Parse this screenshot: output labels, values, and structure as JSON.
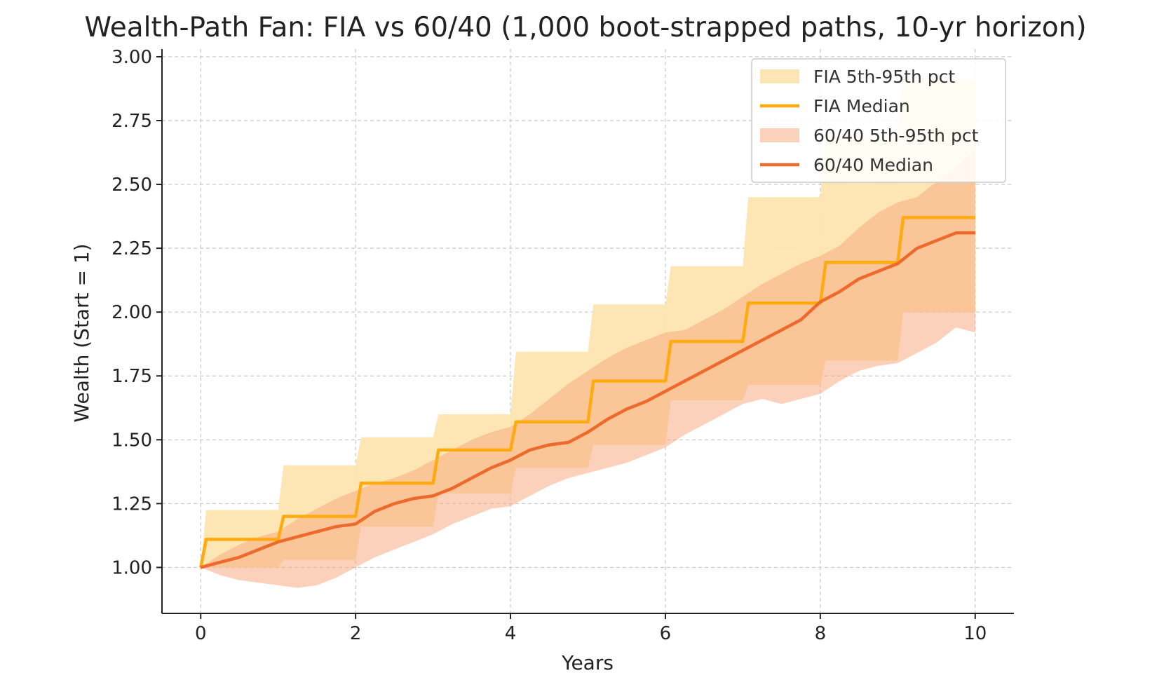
{
  "chart_data": {
    "type": "area",
    "title": "Wealth-Path Fan: FIA vs 60/40 (1,000 boot-strapped paths, 10-yr horizon)",
    "xlabel": "Years",
    "ylabel": "Wealth (Start = 1)",
    "xlim": [
      -0.5,
      10.5
    ],
    "ylim": [
      0.82,
      3.03
    ],
    "xticks": [
      0,
      2,
      4,
      6,
      8,
      10
    ],
    "xtick_labels": [
      "0",
      "2",
      "4",
      "6",
      "8",
      "10"
    ],
    "yticks": [
      1.0,
      1.25,
      1.5,
      1.75,
      2.0,
      2.25,
      2.5,
      2.75,
      3.0
    ],
    "ytick_labels": [
      "1.00",
      "1.25",
      "1.50",
      "1.75",
      "2.00",
      "2.25",
      "2.50",
      "2.75",
      "3.00"
    ],
    "grid": true,
    "legend_position": "top-right",
    "colors": {
      "fia_band": "#fde5b0",
      "fia_median": "#ffab0f",
      "balanced_band": "#f7a47a",
      "balanced_median": "#ee6a2c"
    },
    "legend": [
      {
        "key": "fia_band",
        "label": "FIA 5th-95th pct",
        "kind": "band"
      },
      {
        "key": "fia_median",
        "label": "FIA Median",
        "kind": "line"
      },
      {
        "key": "balanced_band",
        "label": "60/40 5th-95th pct",
        "kind": "band"
      },
      {
        "key": "balanced_median",
        "label": "60/40 Median",
        "kind": "line"
      }
    ],
    "fia": {
      "years": [
        0,
        1,
        2,
        3,
        4,
        5,
        6,
        7,
        8,
        9,
        10
      ],
      "median": [
        1.0,
        1.11,
        1.2,
        1.33,
        1.46,
        1.57,
        1.73,
        1.885,
        2.035,
        2.195,
        2.37
      ],
      "p5": [
        1.0,
        1.0,
        1.03,
        1.16,
        1.29,
        1.39,
        1.48,
        1.655,
        1.715,
        1.81,
        2.0
      ],
      "p95": [
        1.0,
        1.225,
        1.4,
        1.51,
        1.6,
        1.845,
        2.03,
        2.18,
        2.45,
        2.68,
        2.91
      ]
    },
    "balanced": {
      "x": [
        0,
        0.25,
        0.5,
        0.75,
        1,
        1.25,
        1.5,
        1.75,
        2,
        2.25,
        2.5,
        2.75,
        3,
        3.25,
        3.5,
        3.75,
        4,
        4.25,
        4.5,
        4.75,
        5,
        5.25,
        5.5,
        5.75,
        6,
        6.25,
        6.5,
        6.75,
        7,
        7.25,
        7.5,
        7.75,
        8,
        8.25,
        8.5,
        8.75,
        9,
        9.25,
        9.5,
        9.75,
        10
      ],
      "median": [
        1.0,
        1.02,
        1.04,
        1.07,
        1.1,
        1.12,
        1.14,
        1.16,
        1.17,
        1.22,
        1.25,
        1.27,
        1.28,
        1.31,
        1.35,
        1.39,
        1.42,
        1.46,
        1.48,
        1.49,
        1.53,
        1.58,
        1.62,
        1.65,
        1.69,
        1.73,
        1.77,
        1.81,
        1.85,
        1.89,
        1.93,
        1.97,
        2.04,
        2.08,
        2.13,
        2.16,
        2.19,
        2.25,
        2.28,
        2.31,
        2.31
      ],
      "p5": [
        1.0,
        0.97,
        0.95,
        0.94,
        0.93,
        0.92,
        0.93,
        0.96,
        1.0,
        1.04,
        1.07,
        1.1,
        1.13,
        1.17,
        1.2,
        1.23,
        1.24,
        1.28,
        1.32,
        1.35,
        1.37,
        1.39,
        1.41,
        1.44,
        1.47,
        1.52,
        1.56,
        1.6,
        1.64,
        1.66,
        1.64,
        1.66,
        1.68,
        1.73,
        1.77,
        1.79,
        1.8,
        1.84,
        1.88,
        1.94,
        1.92
      ],
      "p95": [
        1.0,
        1.05,
        1.09,
        1.12,
        1.14,
        1.19,
        1.23,
        1.27,
        1.3,
        1.33,
        1.35,
        1.38,
        1.42,
        1.46,
        1.5,
        1.53,
        1.55,
        1.6,
        1.66,
        1.72,
        1.77,
        1.82,
        1.86,
        1.89,
        1.92,
        1.93,
        1.97,
        2.01,
        2.06,
        2.11,
        2.15,
        2.19,
        2.22,
        2.26,
        2.33,
        2.39,
        2.43,
        2.45,
        2.51,
        2.57,
        2.64
      ]
    }
  }
}
